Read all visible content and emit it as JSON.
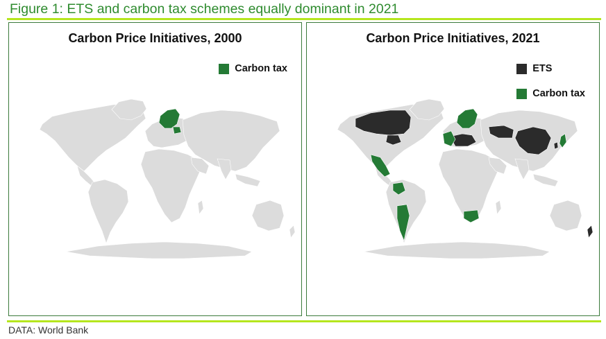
{
  "figure": {
    "title": "Figure 1: ETS and carbon tax schemes equally dominant in 2021",
    "source": "DATA: World Bank"
  },
  "colors": {
    "title": "#2e8b2e",
    "rule": "#b5e61d",
    "land": "#dcdcdc",
    "ets": "#2b2b2b",
    "carbon_tax": "#247a35",
    "panel_border": "#3a7a3a"
  },
  "panels": [
    {
      "title": "Carbon Price Initiatives, 2000",
      "legend": [
        {
          "label": "Carbon tax",
          "color": "#247a35"
        }
      ],
      "highlighted_regions": [
        {
          "name": "Nordic countries",
          "scheme": "Carbon tax"
        },
        {
          "name": "Poland",
          "scheme": "Carbon tax"
        }
      ]
    },
    {
      "title": "Carbon Price Initiatives, 2021",
      "legend": [
        {
          "label": "ETS",
          "color": "#2b2b2b"
        },
        {
          "label": "Carbon tax",
          "color": "#247a35"
        }
      ],
      "highlighted_regions": [
        {
          "name": "Canada",
          "scheme": "ETS"
        },
        {
          "name": "Northeast United States",
          "scheme": "ETS"
        },
        {
          "name": "China",
          "scheme": "ETS"
        },
        {
          "name": "Kazakhstan",
          "scheme": "ETS"
        },
        {
          "name": "South Korea",
          "scheme": "ETS"
        },
        {
          "name": "New Zealand",
          "scheme": "ETS"
        },
        {
          "name": "European Union",
          "scheme": "ETS"
        },
        {
          "name": "Mexico",
          "scheme": "Carbon tax"
        },
        {
          "name": "Colombia",
          "scheme": "Carbon tax"
        },
        {
          "name": "Argentina",
          "scheme": "Carbon tax"
        },
        {
          "name": "Chile",
          "scheme": "Carbon tax"
        },
        {
          "name": "South Africa",
          "scheme": "Carbon tax"
        },
        {
          "name": "Japan",
          "scheme": "Carbon tax"
        },
        {
          "name": "Western Europe",
          "scheme": "Carbon tax"
        }
      ]
    }
  ]
}
